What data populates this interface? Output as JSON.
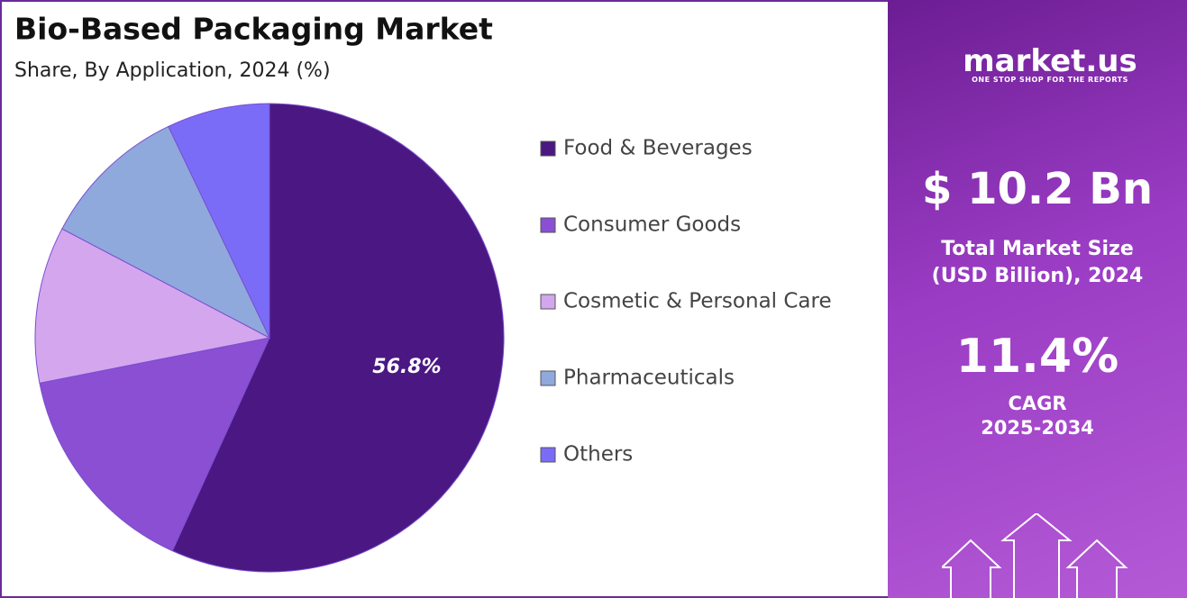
{
  "chart_data": {
    "type": "pie",
    "title": "Bio-Based Packaging Market",
    "subtitle": "Share, By Application, 2024 (%)",
    "categories": [
      "Food & Beverages",
      "Consumer Goods",
      "Cosmetic & Personal Care",
      "Pharmaceuticals",
      "Others"
    ],
    "values": [
      56.8,
      15.1,
      10.8,
      10.2,
      7.1
    ],
    "value_labels": [
      "56.8%",
      null,
      null,
      null,
      null
    ],
    "colors": [
      "#4b1782",
      "#8a4fd3",
      "#d4a6ee",
      "#8fa9dc",
      "#7b6cf8"
    ],
    "legend": "right"
  },
  "panel": {
    "brand": "market.us",
    "tagline": "ONE STOP SHOP FOR THE REPORTS",
    "market_size": "$ 10.2 Bn",
    "market_size_label": [
      "Total Market Size",
      "(USD Billion), 2024"
    ],
    "cagr": "11.4%",
    "cagr_label": [
      "CAGR",
      "2025-2034"
    ]
  }
}
